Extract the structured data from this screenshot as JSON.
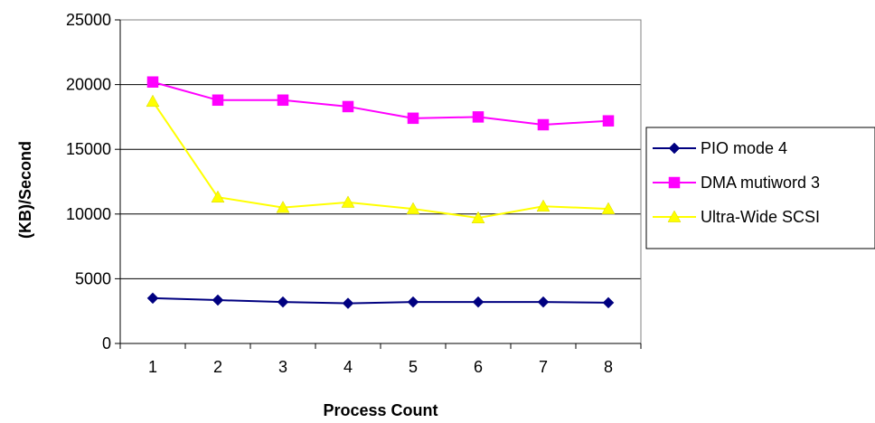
{
  "chart_data": {
    "type": "line",
    "xlabel": "Process Count",
    "ylabel": "(KB)/Second",
    "categories": [
      "1",
      "2",
      "3",
      "4",
      "5",
      "6",
      "7",
      "8"
    ],
    "ylim": [
      0,
      25000
    ],
    "yticks": [
      0,
      5000,
      10000,
      15000,
      20000,
      25000
    ],
    "grid": "horizontal",
    "plot_background": "#ffffff",
    "legend_position": "right",
    "series": [
      {
        "name": "PIO mode 4",
        "color": "#000080",
        "marker": "diamond",
        "values": [
          3500,
          3350,
          3200,
          3100,
          3200,
          3200,
          3200,
          3150
        ]
      },
      {
        "name": "DMA mutiword 3",
        "color": "#ff00ff",
        "marker": "square",
        "values": [
          20200,
          18800,
          18800,
          18300,
          17400,
          17500,
          16900,
          17200
        ]
      },
      {
        "name": "Ultra-Wide SCSI",
        "color": "#ffff00",
        "marker": "triangle",
        "values": [
          18700,
          11300,
          10500,
          10900,
          10400,
          9700,
          10600,
          10400
        ]
      }
    ]
  }
}
